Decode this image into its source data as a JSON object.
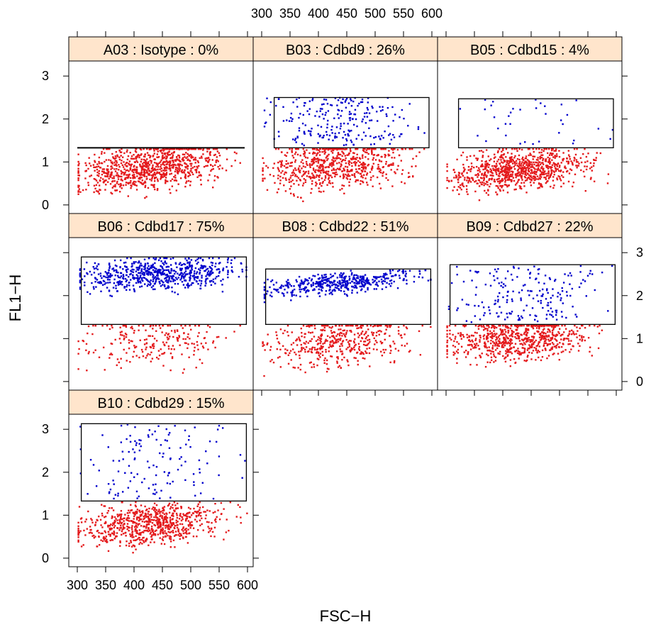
{
  "chart_data": {
    "type": "scatter",
    "layout": "lattice-3x3",
    "xlabel": "FSC−H",
    "ylabel": "FL1−H",
    "xlim": [
      285,
      610
    ],
    "ylim": [
      -0.2,
      3.35
    ],
    "x_ticks": [
      300,
      350,
      400,
      450,
      500,
      550,
      600
    ],
    "x_tick_labels": [
      "300",
      "350",
      "400",
      "450",
      "500",
      "550",
      "600"
    ],
    "y_ticks": [
      0,
      1,
      2,
      3
    ],
    "y_tick_labels": [
      "0",
      "1",
      "2",
      "3"
    ],
    "colors": {
      "negative": "#e41a1c",
      "positive": "#0000cc",
      "strip": "#ffe5cc"
    },
    "panels": [
      {
        "id": "A03",
        "label": "A03 : Isotype : 0%",
        "row": 0,
        "col": 0,
        "positive_fraction": 0.0,
        "gate": {
          "type": "line",
          "y": 1.33,
          "x": [
            300,
            595
          ]
        },
        "neg_y_center": 0.85,
        "neg_y_spread": 0.25,
        "pos_y_range": [
          1.33,
          1.33
        ],
        "n_points": 900,
        "x_trend": 0.0012,
        "seed": 11
      },
      {
        "id": "B03",
        "label": "B03 : Cdbd9 : 26%",
        "row": 0,
        "col": 1,
        "positive_fraction": 0.26,
        "gate": {
          "type": "rect",
          "x": [
            322,
            595
          ],
          "y": [
            1.33,
            2.5
          ]
        },
        "neg_y_center": 0.95,
        "neg_y_spread": 0.3,
        "pos_y_range": [
          1.38,
          2.5
        ],
        "n_points": 900,
        "x_trend": 0.0015,
        "seed": 23
      },
      {
        "id": "B05",
        "label": "B05 : Cdbd15 : 4%",
        "row": 0,
        "col": 2,
        "positive_fraction": 0.04,
        "gate": {
          "type": "rect",
          "x": [
            322,
            595
          ],
          "y": [
            1.33,
            2.47
          ]
        },
        "neg_y_center": 0.82,
        "neg_y_spread": 0.23,
        "pos_y_range": [
          1.38,
          2.45
        ],
        "n_points": 900,
        "x_trend": 0.0012,
        "seed": 37
      },
      {
        "id": "B06",
        "label": "B06 : Cdbd17 : 75%",
        "row": 1,
        "col": 0,
        "positive_fraction": 0.75,
        "gate": {
          "type": "rect",
          "x": [
            307,
            598
          ],
          "y": [
            1.33,
            2.9
          ]
        },
        "neg_y_center": 0.95,
        "neg_y_spread": 0.3,
        "pos_y_center": 2.5,
        "pos_y_spread": 0.18,
        "n_points": 900,
        "x_trend": 0.0005,
        "seed": 41
      },
      {
        "id": "B08",
        "label": "B08 : Cdbd22 : 51%",
        "row": 1,
        "col": 1,
        "positive_fraction": 0.51,
        "gate": {
          "type": "rect",
          "x": [
            307,
            598
          ],
          "y": [
            1.33,
            2.62
          ]
        },
        "neg_y_center": 0.95,
        "neg_y_spread": 0.28,
        "pos_y_center": 2.3,
        "pos_y_spread": 0.12,
        "n_points": 900,
        "x_trend": 0.0012,
        "seed": 53
      },
      {
        "id": "B09",
        "label": "B09 : Cdbd27 : 22%",
        "row": 1,
        "col": 2,
        "positive_fraction": 0.22,
        "gate": {
          "type": "rect",
          "x": [
            307,
            598
          ],
          "y": [
            1.33,
            2.72
          ]
        },
        "neg_y_center": 1.0,
        "neg_y_spread": 0.25,
        "pos_y_range": [
          1.38,
          2.7
        ],
        "n_points": 900,
        "x_trend": 0.0008,
        "seed": 67
      },
      {
        "id": "B10",
        "label": "B10 : Cdbd29 : 15%",
        "row": 2,
        "col": 0,
        "positive_fraction": 0.15,
        "gate": {
          "type": "rect",
          "x": [
            307,
            598
          ],
          "y": [
            1.33,
            3.13
          ]
        },
        "neg_y_center": 0.8,
        "neg_y_spread": 0.23,
        "pos_y_range": [
          1.38,
          3.13
        ],
        "n_points": 900,
        "x_trend": 0.0012,
        "seed": 79
      }
    ]
  }
}
